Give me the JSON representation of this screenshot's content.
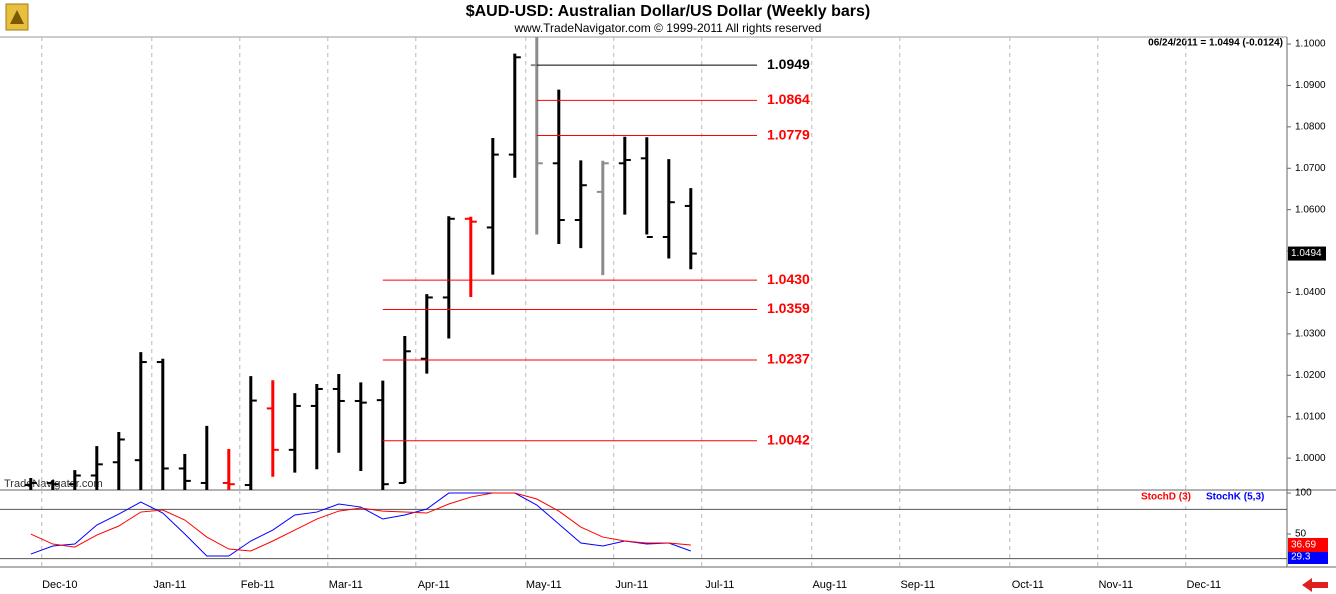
{
  "chart_data": [
    {
      "type": "ohlc",
      "title": "$AUD-USD:  Australian Dollar/US Dollar  (Weekly bars)",
      "subtitle": "www.TradeNavigator.com © 1999-2011 All rights reserved",
      "info": "06/24/2011 = 1.0494 (-0.0124)",
      "watermark": "TradeNavigator.com",
      "open": [
        0.9935,
        0.994,
        0.9937,
        0.9958,
        0.999,
        0.9995,
        1.0232,
        0.9975,
        0.994,
        0.994,
        0.9935,
        1.012,
        1.002,
        1.0126,
        1.0167,
        1.0138,
        1.014,
        0.994,
        1.024,
        1.0388,
        1.0578,
        1.0557,
        1.0733,
        1.0949,
        1.0712,
        1.0575,
        1.0643,
        1.0712,
        1.0724,
        1.0534,
        1.0609
      ],
      "high": [
        0.9952,
        0.9947,
        0.9971,
        1.0029,
        1.0063,
        1.0256,
        1.024,
        1.001,
        1.0078,
        1.0022,
        1.0198,
        1.0188,
        1.0157,
        1.0179,
        1.0203,
        1.0183,
        1.0187,
        1.0295,
        1.0396,
        1.0584,
        1.0583,
        1.0773,
        1.0977,
        1.1017,
        1.089,
        1.0719,
        1.0718,
        1.0776,
        1.0775,
        1.0722,
        1.0652
      ],
      "low": [
        0.99,
        0.99,
        0.99,
        0.99,
        0.99,
        0.99,
        0.9905,
        0.99,
        0.99,
        0.99,
        0.99,
        0.9955,
        0.9965,
        0.9973,
        1.0013,
        0.9969,
        0.991,
        0.994,
        1.0204,
        1.0289,
        1.0389,
        1.0443,
        1.0677,
        1.054,
        1.0517,
        1.0507,
        1.0442,
        1.0588,
        1.054,
        1.0482,
        1.0456
      ],
      "close": [
        0.994,
        0.9937,
        0.9958,
        0.9985,
        1.0045,
        1.0232,
        0.9975,
        0.9945,
        0.992,
        0.9937,
        1.0139,
        1.002,
        1.0126,
        1.0167,
        1.0138,
        1.0134,
        0.9937,
        1.0258,
        1.0388,
        1.0578,
        1.0571,
        1.0733,
        1.0968,
        1.0712,
        1.0575,
        1.0659,
        1.0712,
        1.072,
        1.0534,
        1.0618,
        1.0494
      ],
      "colors": [
        "#000000",
        "#000000",
        "#000000",
        "#000000",
        "#000000",
        "#000000",
        "#000000",
        "#000000",
        "#000000",
        "#ff0000",
        "#000000",
        "#ff0000",
        "#000000",
        "#000000",
        "#000000",
        "#000000",
        "#000000",
        "#000000",
        "#000000",
        "#000000",
        "#ff0000",
        "#000000",
        "#000000",
        "#8c8c8c",
        "#000000",
        "#000000",
        "#8c8c8c",
        "#000000",
        "#000000",
        "#000000",
        "#000000"
      ],
      "xlim": [
        -1.4,
        57.1
      ],
      "xticks": [
        {
          "value": 0.5,
          "label": "Dec-10"
        },
        {
          "value": 5.5,
          "label": "Jan-11"
        },
        {
          "value": 9.5,
          "label": "Feb-11"
        },
        {
          "value": 13.5,
          "label": "Mar-11"
        },
        {
          "value": 17.5,
          "label": "Apr-11"
        },
        {
          "value": 22.5,
          "label": "May-11"
        },
        {
          "value": 26.5,
          "label": "Jun-11"
        },
        {
          "value": 30.5,
          "label": "Jul-11"
        },
        {
          "value": 35.5,
          "label": "Aug-11"
        },
        {
          "value": 39.5,
          "label": "Sep-11"
        },
        {
          "value": 44.5,
          "label": "Oct-11"
        },
        {
          "value": 48.5,
          "label": "Nov-11"
        },
        {
          "value": 52.5,
          "label": "Dec-11"
        }
      ],
      "ylim": [
        0.9923,
        1.1017
      ],
      "yticks": [
        {
          "value": 1.1,
          "label": "1.1000"
        },
        {
          "value": 1.09,
          "label": "1.0900"
        },
        {
          "value": 1.08,
          "label": "1.0800"
        },
        {
          "value": 1.07,
          "label": "1.0700"
        },
        {
          "value": 1.06,
          "label": "1.0600"
        },
        {
          "value": 1.05,
          "label": "1.0500"
        },
        {
          "value": 1.04,
          "label": "1.0400"
        },
        {
          "value": 1.03,
          "label": "1.0300"
        },
        {
          "value": 1.02,
          "label": "1.0200"
        },
        {
          "value": 1.01,
          "label": "1.0100"
        },
        {
          "value": 1.0,
          "label": "1.0000"
        }
      ],
      "levels": [
        {
          "value": 1.0949,
          "label": "1.0949",
          "color": "#000000"
        },
        {
          "value": 1.0864,
          "label": "1.0864",
          "color": "#ff0000"
        },
        {
          "value": 1.0779,
          "label": "1.0779",
          "color": "#ff0000"
        },
        {
          "value": 1.043,
          "label": "1.0430",
          "color": "#ff0000"
        },
        {
          "value": 1.0359,
          "label": "1.0359",
          "color": "#ff0000"
        },
        {
          "value": 1.0237,
          "label": "1.0237",
          "color": "#ff0000"
        },
        {
          "value": 1.0042,
          "label": "1.0042",
          "color": "#ff0000"
        }
      ],
      "grid": true
    },
    {
      "type": "line",
      "series": [
        {
          "name": "StochD (3)",
          "color": "#ff0000",
          "values": [
            50,
            37.8,
            34.1,
            48.8,
            59.8,
            76.8,
            79.3,
            67.1,
            46.3,
            31.7,
            29.3,
            41.5,
            54.9,
            68.3,
            78,
            81.7,
            78,
            76.8,
            75.6,
            86.6,
            95.1,
            100,
            100,
            92.7,
            78,
            58.5,
            46.3,
            41.5,
            39,
            39,
            36.69
          ]
        },
        {
          "name": "StochK (5,3)",
          "color": "#0000ff",
          "values": [
            25.6,
            35.4,
            37.8,
            61,
            74.4,
            89,
            75.6,
            50,
            23.2,
            23.2,
            41.5,
            54.9,
            73.2,
            76.8,
            86.6,
            82.9,
            68.3,
            73.2,
            80.5,
            100,
            100,
            100,
            100,
            85.4,
            62.2,
            39,
            35.4,
            41.5,
            37.8,
            39,
            29.3
          ]
        }
      ],
      "ylim": [
        9.8,
        103.7
      ],
      "yticks": [
        100,
        50
      ],
      "reference_lines": [
        80,
        20
      ]
    }
  ]
}
